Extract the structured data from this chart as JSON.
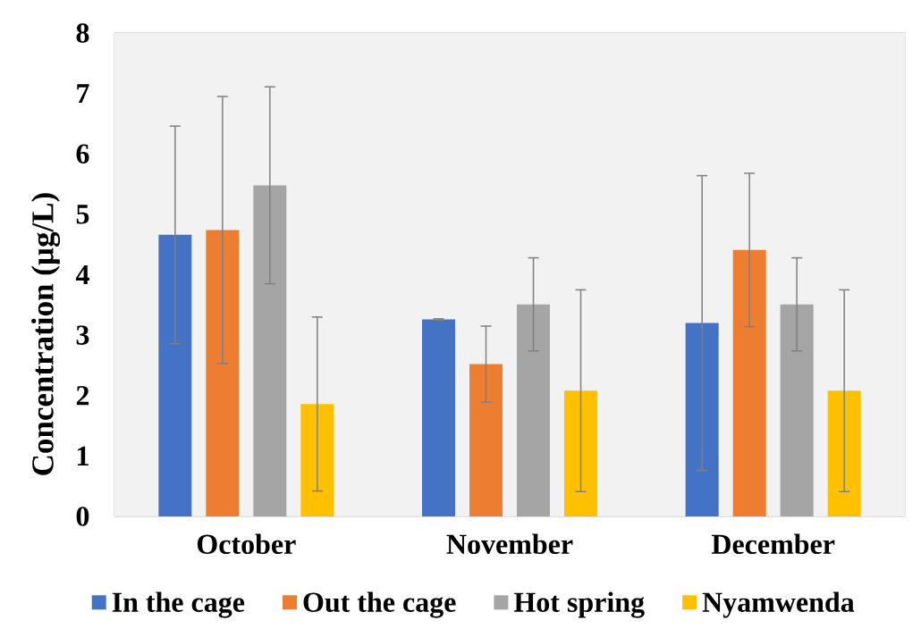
{
  "chart_data": {
    "type": "bar",
    "ylabel": "Concentration (µg/L)",
    "categories": [
      "October",
      "November",
      "December"
    ],
    "series": [
      {
        "name": "In the cage",
        "color": "#4472c4",
        "values": [
          4.66,
          3.26,
          3.2
        ],
        "errors": [
          1.8,
          0.01,
          2.44
        ]
      },
      {
        "name": "Out the cage",
        "color": "#ed7d31",
        "values": [
          4.74,
          2.52,
          4.41
        ],
        "errors": [
          2.21,
          0.63,
          1.27
        ]
      },
      {
        "name": "Hot spring",
        "color": "#a5a5a5",
        "values": [
          5.48,
          3.51,
          3.51
        ],
        "errors": [
          1.63,
          0.77,
          0.77
        ]
      },
      {
        "name": "Nyamwenda",
        "color": "#ffc000",
        "values": [
          1.86,
          2.08,
          2.08
        ],
        "errors": [
          1.44,
          1.67,
          1.67
        ]
      }
    ],
    "ylim": [
      0,
      8
    ],
    "yticks": [
      0,
      1,
      2,
      3,
      4,
      5,
      6,
      7,
      8
    ],
    "grid": true,
    "legend": "bottom"
  }
}
